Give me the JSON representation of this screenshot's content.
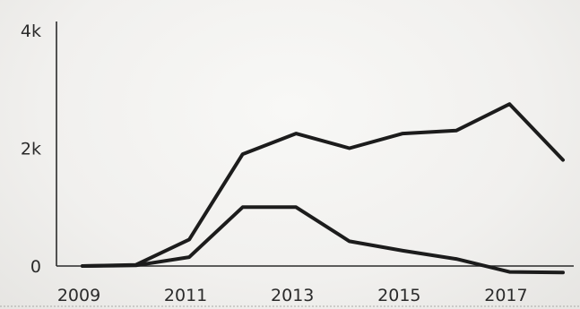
{
  "chart_data": {
    "type": "line",
    "title": "",
    "xlabel": "",
    "ylabel": "",
    "x": [
      2009,
      2010,
      2011,
      2012,
      2013,
      2014,
      2015,
      2016,
      2017,
      2018
    ],
    "xticks": [
      2009,
      2011,
      2013,
      2015,
      2017
    ],
    "xtick_labels": [
      "2009",
      "2011",
      "2013",
      "2015",
      "2017"
    ],
    "yticks": [
      0,
      2000,
      4000
    ],
    "ytick_labels": [
      "0",
      "2k",
      "4k"
    ],
    "ylim": [
      0,
      4000
    ],
    "grid": false,
    "legend": "none",
    "line_color": "#1c1c1c",
    "series": [
      {
        "values": [
          0,
          20,
          450,
          1900,
          2250,
          2000,
          2250,
          2300,
          2750,
          1800
        ]
      },
      {
        "values": [
          0,
          10,
          150,
          1000,
          1000,
          420,
          260,
          120,
          -100,
          -110
        ]
      }
    ]
  }
}
